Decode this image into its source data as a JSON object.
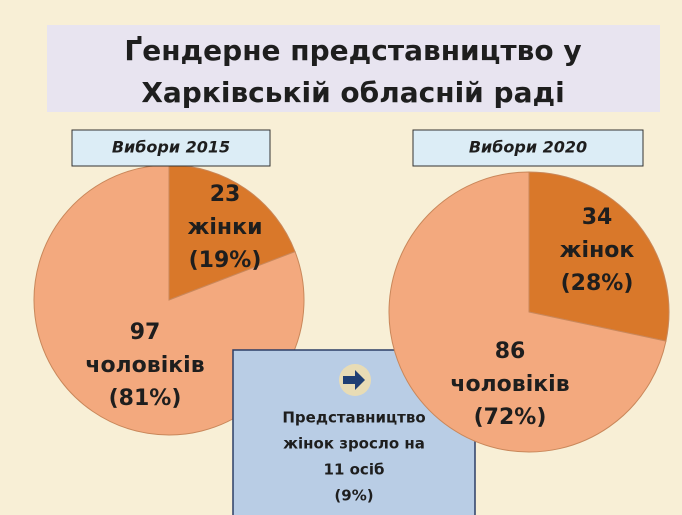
{
  "title_lines": [
    "Ґендерне представництво у",
    "Харківській обласній раді"
  ],
  "annotation_lines": [
    "Представництво",
    "жінок зросло на",
    "11 осіб",
    "(9%)"
  ],
  "chart_data": [
    {
      "type": "pie",
      "subtitle": "Вибори 2015",
      "categories": [
        "жінки",
        "чоловіків"
      ],
      "values": [
        23,
        97
      ],
      "percent_labels": [
        "(19%)",
        "(81%)"
      ],
      "colors": [
        "#d9782a",
        "#f3a97e"
      ]
    },
    {
      "type": "pie",
      "subtitle": "Вибори 2020",
      "categories": [
        "жінок",
        "чоловіків"
      ],
      "values": [
        34,
        86
      ],
      "percent_labels": [
        "(28%)",
        "(72%)"
      ],
      "colors": [
        "#d9782a",
        "#f3a97e"
      ]
    }
  ]
}
